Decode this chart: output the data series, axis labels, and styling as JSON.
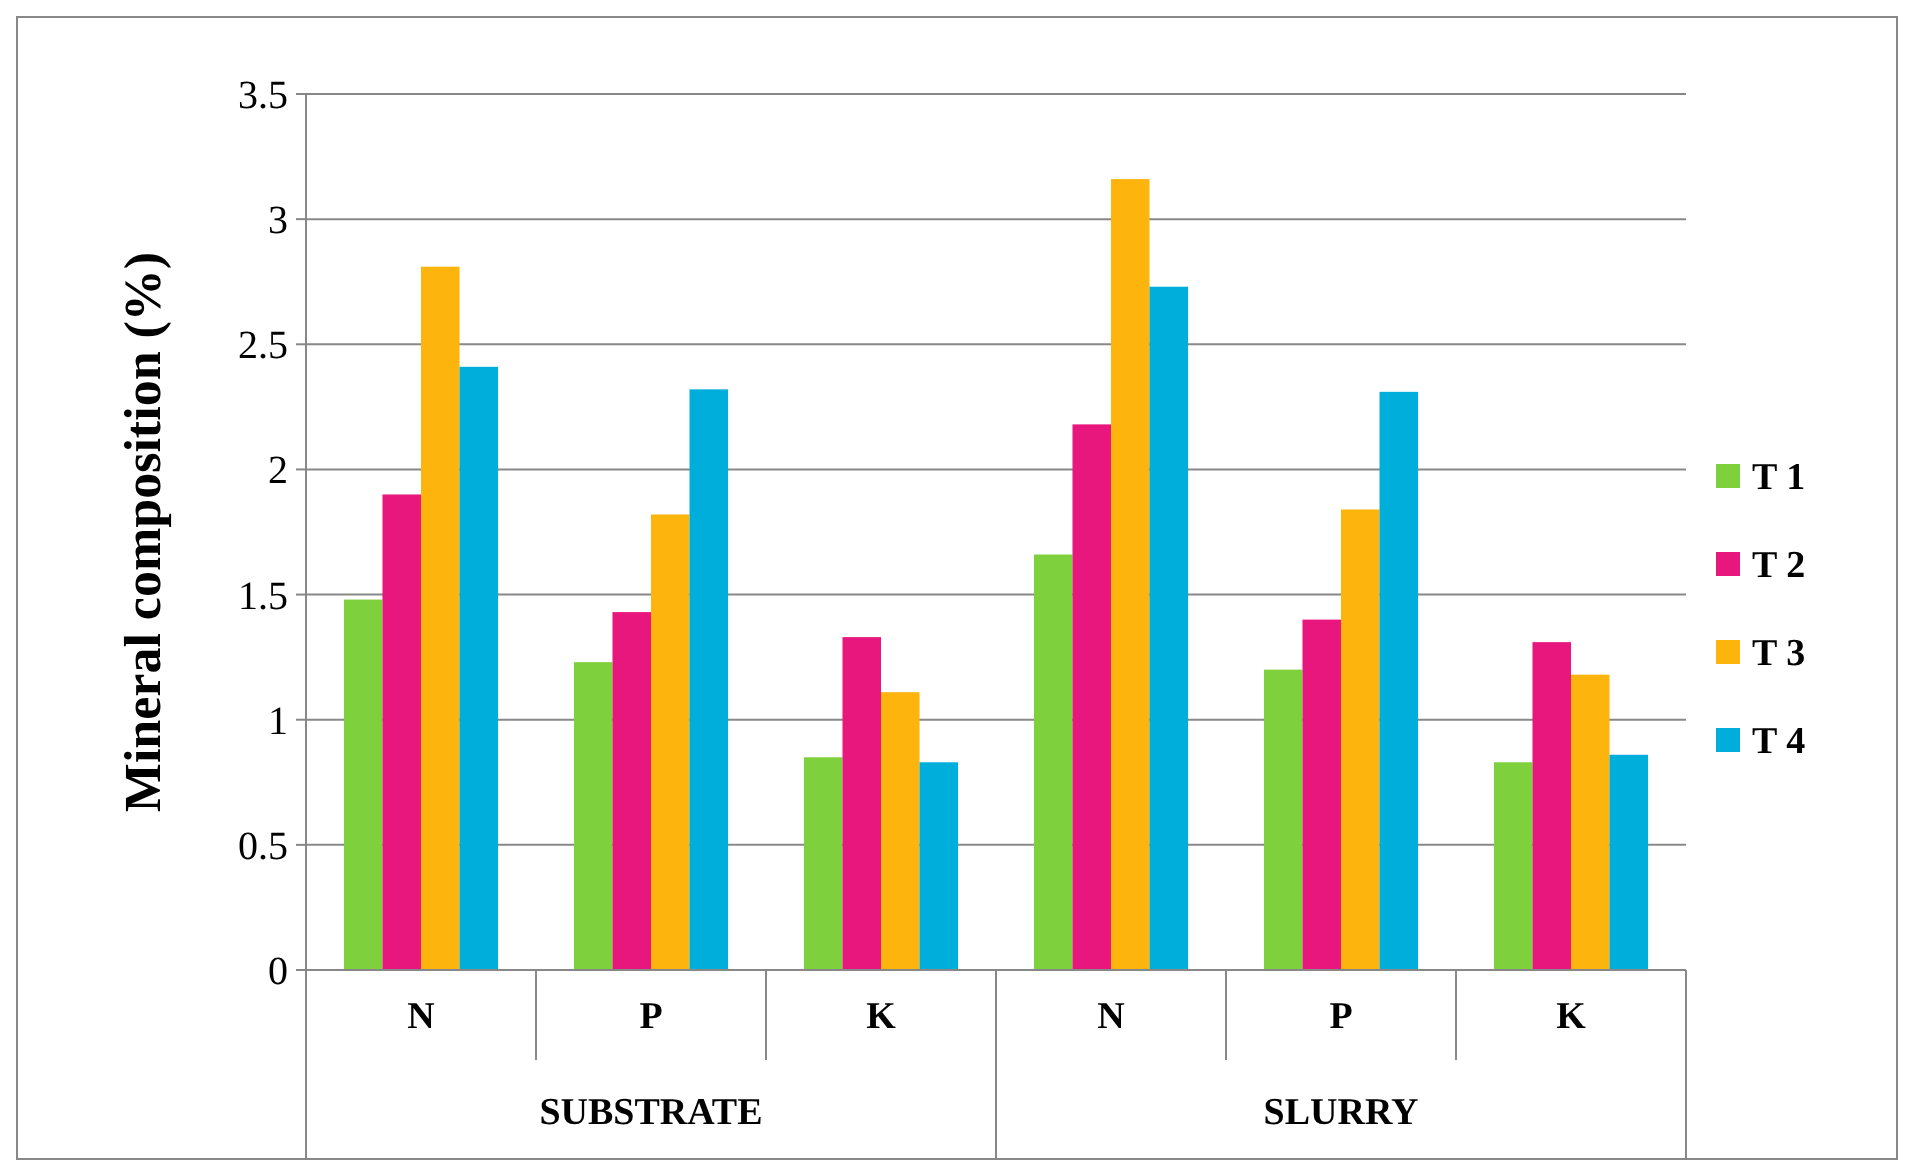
{
  "chart_data": {
    "type": "bar",
    "ylabel": "Mineral composition (%)",
    "categories": [
      "N",
      "P",
      "K",
      "N",
      "P",
      "K"
    ],
    "annotations": [
      "SUBSTRATE",
      "SLURRY"
    ],
    "series": [
      {
        "name": "T 1",
        "color": "#7ed03c",
        "values": [
          1.48,
          1.23,
          0.85,
          1.66,
          1.2,
          0.83
        ]
      },
      {
        "name": "T 2",
        "color": "#e8177d",
        "values": [
          1.9,
          1.43,
          1.33,
          2.18,
          1.4,
          1.31
        ]
      },
      {
        "name": "T 3",
        "color": "#fdb40d",
        "values": [
          2.81,
          1.82,
          1.11,
          3.16,
          1.84,
          1.18
        ]
      },
      {
        "name": "T 4",
        "color": "#00aedb",
        "values": [
          2.41,
          2.32,
          0.83,
          2.73,
          2.31,
          0.86
        ]
      }
    ],
    "ylim": [
      0,
      3.5
    ],
    "yticks": [
      0,
      0.5,
      1,
      1.5,
      2,
      2.5,
      3,
      3.5
    ],
    "grid": "y",
    "legend": "right"
  }
}
